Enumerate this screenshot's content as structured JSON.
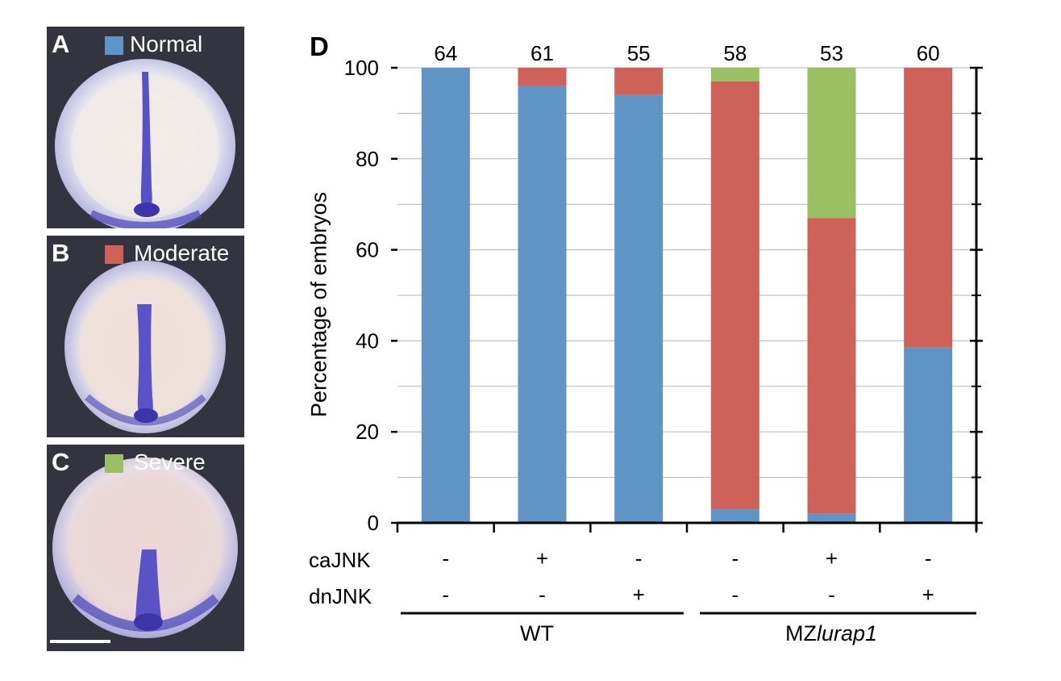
{
  "panels": [
    {
      "letter": "A",
      "legend": "Normal",
      "color": "#5e94c6"
    },
    {
      "letter": "B",
      "legend": "Moderate",
      "color": "#cf6258"
    },
    {
      "letter": "C",
      "legend": "Severe",
      "color": "#9bbf63"
    }
  ],
  "panel_d_letter": "D",
  "chart_data": {
    "type": "bar",
    "stacked": true,
    "ylabel": "Percentage of embryos",
    "ylim": [
      0,
      100
    ],
    "yticks": [
      0,
      20,
      40,
      60,
      80,
      100
    ],
    "grid": true,
    "n_values": [
      "64",
      "61",
      "55",
      "58",
      "53",
      "60"
    ],
    "series": [
      {
        "name": "Normal",
        "color": "#5e94c6",
        "values": [
          100,
          96,
          94,
          3,
          2,
          38.5
        ]
      },
      {
        "name": "Moderate",
        "color": "#cf6258",
        "values": [
          0,
          4,
          6,
          94,
          65,
          61.5
        ]
      },
      {
        "name": "Severe",
        "color": "#9bbf63",
        "values": [
          0,
          0,
          0,
          3,
          33,
          0
        ]
      }
    ],
    "conditions": [
      {
        "label": "caJNK",
        "values": [
          "-",
          "+",
          "-",
          "-",
          "+",
          "-"
        ]
      },
      {
        "label": "dnJNK",
        "values": [
          "-",
          "-",
          "+",
          "-",
          "-",
          "+"
        ]
      }
    ],
    "groups": [
      {
        "label": "WT",
        "italic": ""
      },
      {
        "label": "MZ",
        "italic": "lurap1"
      }
    ]
  }
}
